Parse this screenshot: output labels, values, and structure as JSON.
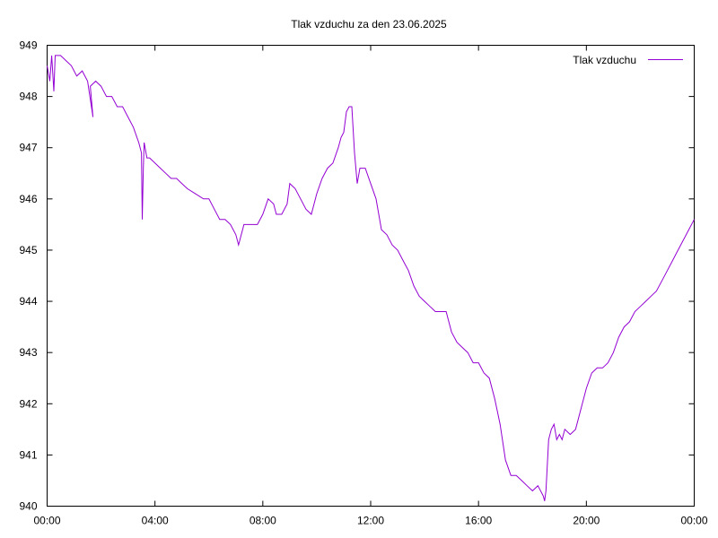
{
  "chart_data": {
    "type": "line",
    "title": "Tlak vzduchu za den 23.06.2025",
    "xlabel": "",
    "ylabel": "",
    "xlim": [
      0,
      24
    ],
    "ylim": [
      940,
      949
    ],
    "x_ticks": [
      {
        "value": 0,
        "label": "00:00"
      },
      {
        "value": 4,
        "label": "04:00"
      },
      {
        "value": 8,
        "label": "08:00"
      },
      {
        "value": 12,
        "label": "12:00"
      },
      {
        "value": 16,
        "label": "16:00"
      },
      {
        "value": 20,
        "label": "20:00"
      },
      {
        "value": 24,
        "label": "00:00"
      }
    ],
    "y_ticks": [
      {
        "value": 940,
        "label": "940"
      },
      {
        "value": 941,
        "label": "941"
      },
      {
        "value": 942,
        "label": "942"
      },
      {
        "value": 943,
        "label": "943"
      },
      {
        "value": 944,
        "label": "944"
      },
      {
        "value": 945,
        "label": "945"
      },
      {
        "value": 946,
        "label": "946"
      },
      {
        "value": 947,
        "label": "947"
      },
      {
        "value": 948,
        "label": "948"
      },
      {
        "value": 949,
        "label": "949"
      }
    ],
    "grid": false,
    "legend_position": "top-right",
    "series": [
      {
        "name": "Tlak vzduchu",
        "color": "#9400d3",
        "x": [
          0.0,
          0.1,
          0.17,
          0.25,
          0.3,
          0.5,
          0.7,
          0.9,
          1.1,
          1.3,
          1.5,
          1.7,
          1.6,
          1.8,
          2.0,
          2.2,
          2.4,
          2.6,
          2.8,
          3.0,
          3.2,
          3.4,
          3.5,
          3.53,
          3.57,
          3.6,
          3.7,
          3.8,
          4.0,
          4.2,
          4.4,
          4.6,
          4.8,
          5.0,
          5.2,
          5.5,
          5.8,
          6.0,
          6.2,
          6.4,
          6.6,
          6.8,
          7.0,
          7.1,
          7.3,
          7.5,
          7.8,
          8.0,
          8.2,
          8.4,
          8.5,
          8.7,
          8.9,
          9.0,
          9.2,
          9.4,
          9.6,
          9.8,
          10.0,
          10.2,
          10.4,
          10.6,
          10.8,
          10.9,
          11.0,
          11.1,
          11.2,
          11.3,
          11.4,
          11.5,
          11.6,
          11.8,
          12.0,
          12.2,
          12.4,
          12.6,
          12.8,
          13.0,
          13.2,
          13.4,
          13.6,
          13.8,
          14.0,
          14.2,
          14.4,
          14.6,
          14.8,
          15.0,
          15.2,
          15.4,
          15.6,
          15.8,
          16.0,
          16.2,
          16.4,
          16.6,
          16.8,
          17.0,
          17.2,
          17.4,
          17.6,
          17.8,
          18.0,
          18.2,
          18.4,
          18.45,
          18.5,
          18.6,
          18.7,
          18.8,
          18.9,
          19.0,
          19.1,
          19.2,
          19.4,
          19.6,
          19.8,
          20.0,
          20.2,
          20.4,
          20.6,
          20.8,
          21.0,
          21.2,
          21.4,
          21.6,
          21.8,
          22.0,
          22.2,
          22.4,
          22.6,
          22.8,
          23.0,
          23.2,
          23.4,
          23.6,
          23.8,
          24.0
        ],
        "values": [
          948.6,
          948.3,
          948.8,
          948.1,
          948.8,
          948.8,
          948.7,
          948.6,
          948.4,
          948.5,
          948.3,
          947.6,
          948.2,
          948.3,
          948.2,
          948.0,
          948.0,
          947.8,
          947.8,
          947.6,
          947.4,
          947.1,
          946.9,
          945.6,
          946.6,
          947.1,
          946.8,
          946.8,
          946.7,
          946.6,
          946.5,
          946.4,
          946.4,
          946.3,
          946.2,
          946.1,
          946.0,
          946.0,
          945.8,
          945.6,
          945.6,
          945.5,
          945.3,
          945.1,
          945.5,
          945.5,
          945.5,
          945.7,
          946.0,
          945.9,
          945.7,
          945.7,
          945.9,
          946.3,
          946.2,
          946.0,
          945.8,
          945.7,
          946.1,
          946.4,
          946.6,
          946.7,
          947.0,
          947.2,
          947.3,
          947.7,
          947.8,
          947.8,
          946.9,
          946.3,
          946.6,
          946.6,
          946.3,
          946.0,
          945.4,
          945.3,
          945.1,
          945.0,
          944.8,
          944.6,
          944.3,
          944.1,
          944.0,
          943.9,
          943.8,
          943.8,
          943.8,
          943.4,
          943.2,
          943.1,
          943.0,
          942.8,
          942.8,
          942.6,
          942.5,
          942.1,
          941.6,
          940.9,
          940.6,
          940.6,
          940.5,
          940.4,
          940.3,
          940.4,
          940.2,
          940.1,
          940.3,
          941.3,
          941.5,
          941.6,
          941.3,
          941.4,
          941.3,
          941.5,
          941.4,
          941.5,
          941.9,
          942.3,
          942.6,
          942.7,
          942.7,
          942.8,
          943.0,
          943.3,
          943.5,
          943.6,
          943.8,
          943.9,
          944.0,
          944.1,
          944.2,
          944.4,
          944.6,
          944.8,
          945.0,
          945.2,
          945.4,
          945.6
        ]
      }
    ]
  }
}
